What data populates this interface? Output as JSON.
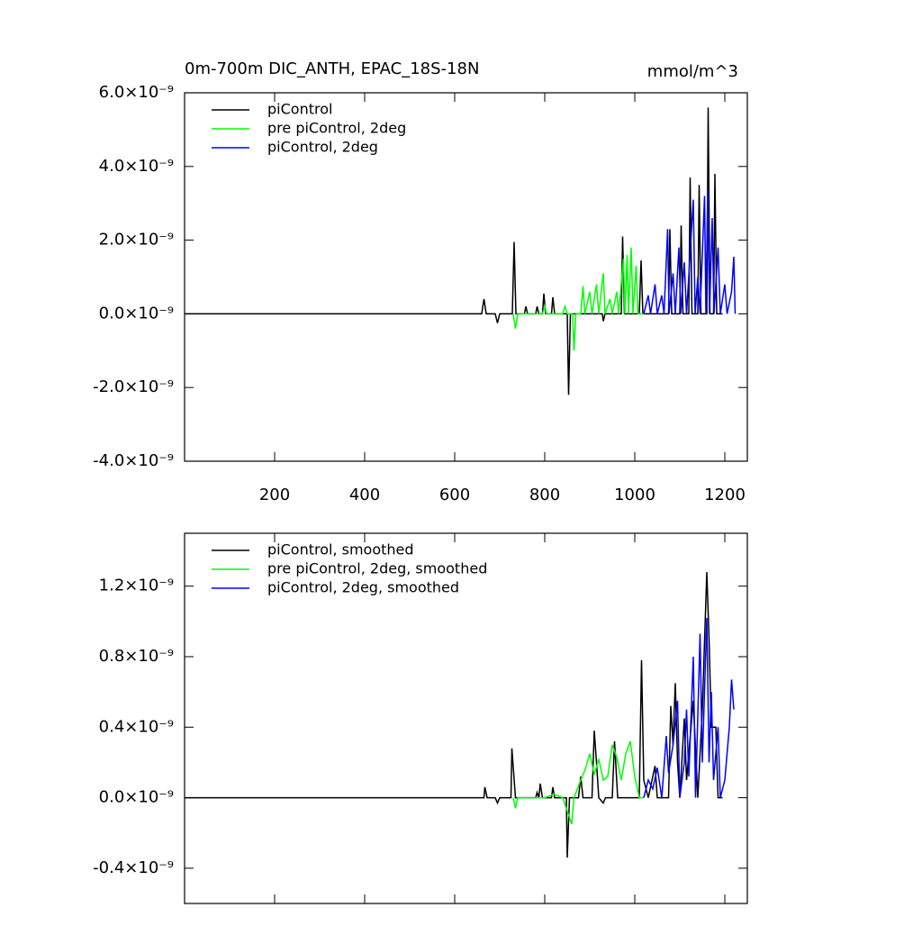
{
  "chart_data": [
    {
      "type": "line",
      "title": "0m-700m DIC_ANTH, EPAC_18S-18N",
      "units": "mmol/m^3",
      "xlim": [
        0,
        1250
      ],
      "xticks": [
        200,
        400,
        600,
        800,
        1000,
        1200
      ],
      "xtick_labels": true,
      "ylim": [
        -4e-09,
        6e-09
      ],
      "yticks": [
        {
          "value": -4e-09,
          "label": "-4.0×10⁻⁹"
        },
        {
          "value": -2e-09,
          "label": "-2.0×10⁻⁹"
        },
        {
          "value": 0,
          "label": "0.0×10⁻⁹"
        },
        {
          "value": 2e-09,
          "label": "2.0×10⁻⁹"
        },
        {
          "value": 4e-09,
          "label": "4.0×10⁻⁹"
        },
        {
          "value": 6e-09,
          "label": "6.0×10⁻⁹"
        }
      ],
      "series": [
        {
          "name": "piControl",
          "color": "#000000",
          "x": [
            0,
            660,
            665,
            670,
            690,
            695,
            700,
            728,
            732,
            736,
            755,
            758,
            762,
            780,
            783,
            787,
            795,
            798,
            802,
            815,
            818,
            822,
            850,
            853,
            857,
            928,
            930,
            934,
            970,
            973,
            977,
            1010,
            1014,
            1018,
            1075,
            1078,
            1082,
            1100,
            1103,
            1107,
            1120,
            1123,
            1127,
            1140,
            1143,
            1147,
            1160,
            1163,
            1167,
            1175,
            1178,
            1182,
            1195
          ],
          "values": [
            0,
            0,
            4e-10,
            0,
            0,
            -2.5e-10,
            0,
            0,
            1.95e-09,
            0,
            0,
            2e-10,
            0,
            0,
            2e-10,
            0,
            0,
            5.5e-10,
            0,
            0,
            4.5e-10,
            0,
            0,
            -2.2e-09,
            0,
            0,
            -2e-10,
            0,
            0,
            2.1e-09,
            0,
            0,
            1.45e-09,
            0,
            0,
            2.3e-09,
            0,
            0,
            2.4e-09,
            0,
            0,
            3.7e-09,
            0,
            0,
            3.5e-09,
            0,
            0,
            5.6e-09,
            0,
            0,
            3.8e-09,
            0,
            0
          ]
        },
        {
          "name": "pre piControl, 2deg",
          "color": "#00ff00",
          "x": [
            730,
            735,
            740,
            760,
            795,
            800,
            804,
            840,
            845,
            850,
            862,
            865,
            869,
            880,
            885,
            889,
            900,
            905,
            915,
            920,
            930,
            934,
            945,
            950,
            960,
            964,
            975,
            978,
            983,
            986,
            992,
            996,
            1003,
            1007,
            1020
          ],
          "values": [
            0,
            -4e-10,
            0,
            0,
            0,
            2e-10,
            0,
            0,
            2e-10,
            0,
            0,
            -1e-09,
            0,
            0,
            7.5e-10,
            0,
            6e-10,
            0,
            8e-10,
            0,
            1.1e-09,
            0,
            4e-10,
            0,
            6e-10,
            0,
            1.5e-09,
            0,
            1.6e-09,
            0,
            1.8e-09,
            0,
            1.3e-09,
            0,
            0
          ]
        },
        {
          "name": "piControl, 2deg",
          "color": "#0000ff",
          "x": [
            1020,
            1030,
            1035,
            1045,
            1050,
            1060,
            1065,
            1073,
            1076,
            1085,
            1090,
            1098,
            1102,
            1110,
            1115,
            1130,
            1134,
            1140,
            1145,
            1155,
            1158,
            1162,
            1166,
            1172,
            1176,
            1185,
            1190,
            1200,
            1205,
            1215,
            1220,
            1223
          ],
          "values": [
            0,
            5e-10,
            0,
            8e-10,
            0,
            5e-10,
            0,
            2.3e-09,
            0,
            1.1e-09,
            0,
            1.8e-09,
            0,
            1.4e-09,
            0,
            3.1e-09,
            0,
            1e-09,
            0,
            3.2e-09,
            0,
            3.4e-09,
            0,
            2.6e-09,
            0,
            1.8e-09,
            0,
            8e-10,
            0,
            6e-10,
            1.55e-09,
            0
          ]
        }
      ]
    },
    {
      "type": "line",
      "xlim": [
        0,
        1250
      ],
      "xticks": [
        200,
        400,
        600,
        800,
        1000,
        1200
      ],
      "xtick_labels": false,
      "ylim": [
        -6e-10,
        1.5e-09
      ],
      "yticks": [
        {
          "value": -4e-10,
          "label": "-0.4×10⁻⁹"
        },
        {
          "value": 0,
          "label": "0.0×10⁻⁹"
        },
        {
          "value": 4e-10,
          "label": "0.4×10⁻⁹"
        },
        {
          "value": 8e-10,
          "label": "0.8×10⁻⁹"
        },
        {
          "value": 1.2e-09,
          "label": "1.2×10⁻⁹"
        }
      ],
      "series": [
        {
          "name": "piControl, smoothed",
          "color": "#000000",
          "x": [
            0,
            665,
            667,
            672,
            690,
            695,
            700,
            725,
            727,
            735,
            780,
            783,
            787,
            790,
            795,
            815,
            818,
            822,
            848,
            850,
            855,
            875,
            880,
            885,
            905,
            910,
            915,
            920,
            930,
            935,
            950,
            955,
            962,
            1010,
            1015,
            1020,
            1030,
            1045,
            1050,
            1075,
            1080,
            1085,
            1090,
            1095,
            1100,
            1110,
            1115,
            1130,
            1140,
            1150,
            1160,
            1165,
            1170,
            1180,
            1185,
            1195
          ],
          "values": [
            0,
            0,
            6e-11,
            0,
            0,
            -3e-11,
            0,
            0,
            2.8e-10,
            0,
            0,
            3e-11,
            0,
            8e-11,
            0,
            0,
            6e-11,
            0,
            0,
            -3.4e-10,
            0,
            0,
            1.2e-10,
            0,
            0,
            3.8e-10,
            2e-10,
            0,
            -3e-11,
            0,
            0,
            3.2e-10,
            0,
            0,
            7.8e-10,
            1e-10,
            0,
            1.8e-10,
            0,
            0,
            5.2e-10,
            3e-10,
            6.5e-10,
            2e-10,
            0,
            4.5e-10,
            1e-10,
            5.5e-10,
            0,
            5e-10,
            1.28e-09,
            9e-10,
            4e-10,
            4e-10,
            0,
            0
          ]
        },
        {
          "name": "pre piControl, 2deg, smoothed",
          "color": "#00ff00",
          "x": [
            730,
            735,
            740,
            760,
            800,
            820,
            840,
            860,
            865,
            880,
            890,
            900,
            910,
            920,
            930,
            940,
            950,
            960,
            970,
            980,
            990,
            1000,
            1010,
            1020
          ],
          "values": [
            0,
            -6e-11,
            0,
            0,
            0,
            2e-11,
            0,
            -1.5e-10,
            0,
            1e-10,
            1.6e-10,
            2.5e-10,
            1.3e-10,
            2.2e-10,
            1e-10,
            1.2e-10,
            3e-10,
            2.3e-10,
            1e-10,
            2.5e-10,
            3.2e-10,
            1.2e-10,
            0,
            0
          ]
        },
        {
          "name": "piControl, 2deg, smoothed",
          "color": "#0000ff",
          "x": [
            1020,
            1030,
            1040,
            1050,
            1060,
            1070,
            1075,
            1085,
            1095,
            1100,
            1110,
            1115,
            1120,
            1130,
            1135,
            1145,
            1150,
            1160,
            1165,
            1170,
            1175,
            1185,
            1190,
            1200,
            1210,
            1215,
            1220
          ],
          "values": [
            0,
            1e-10,
            5e-11,
            1.7e-10,
            0,
            3.5e-10,
            1.4e-10,
            3e-10,
            5.5e-10,
            0,
            2e-10,
            5e-10,
            1.2e-10,
            8e-10,
            0,
            9.3e-10,
            2e-10,
            1.02e-09,
            2e-10,
            6e-10,
            1e-10,
            4e-10,
            0,
            1e-10,
            4e-10,
            6.7e-10,
            5e-10
          ]
        }
      ]
    }
  ]
}
